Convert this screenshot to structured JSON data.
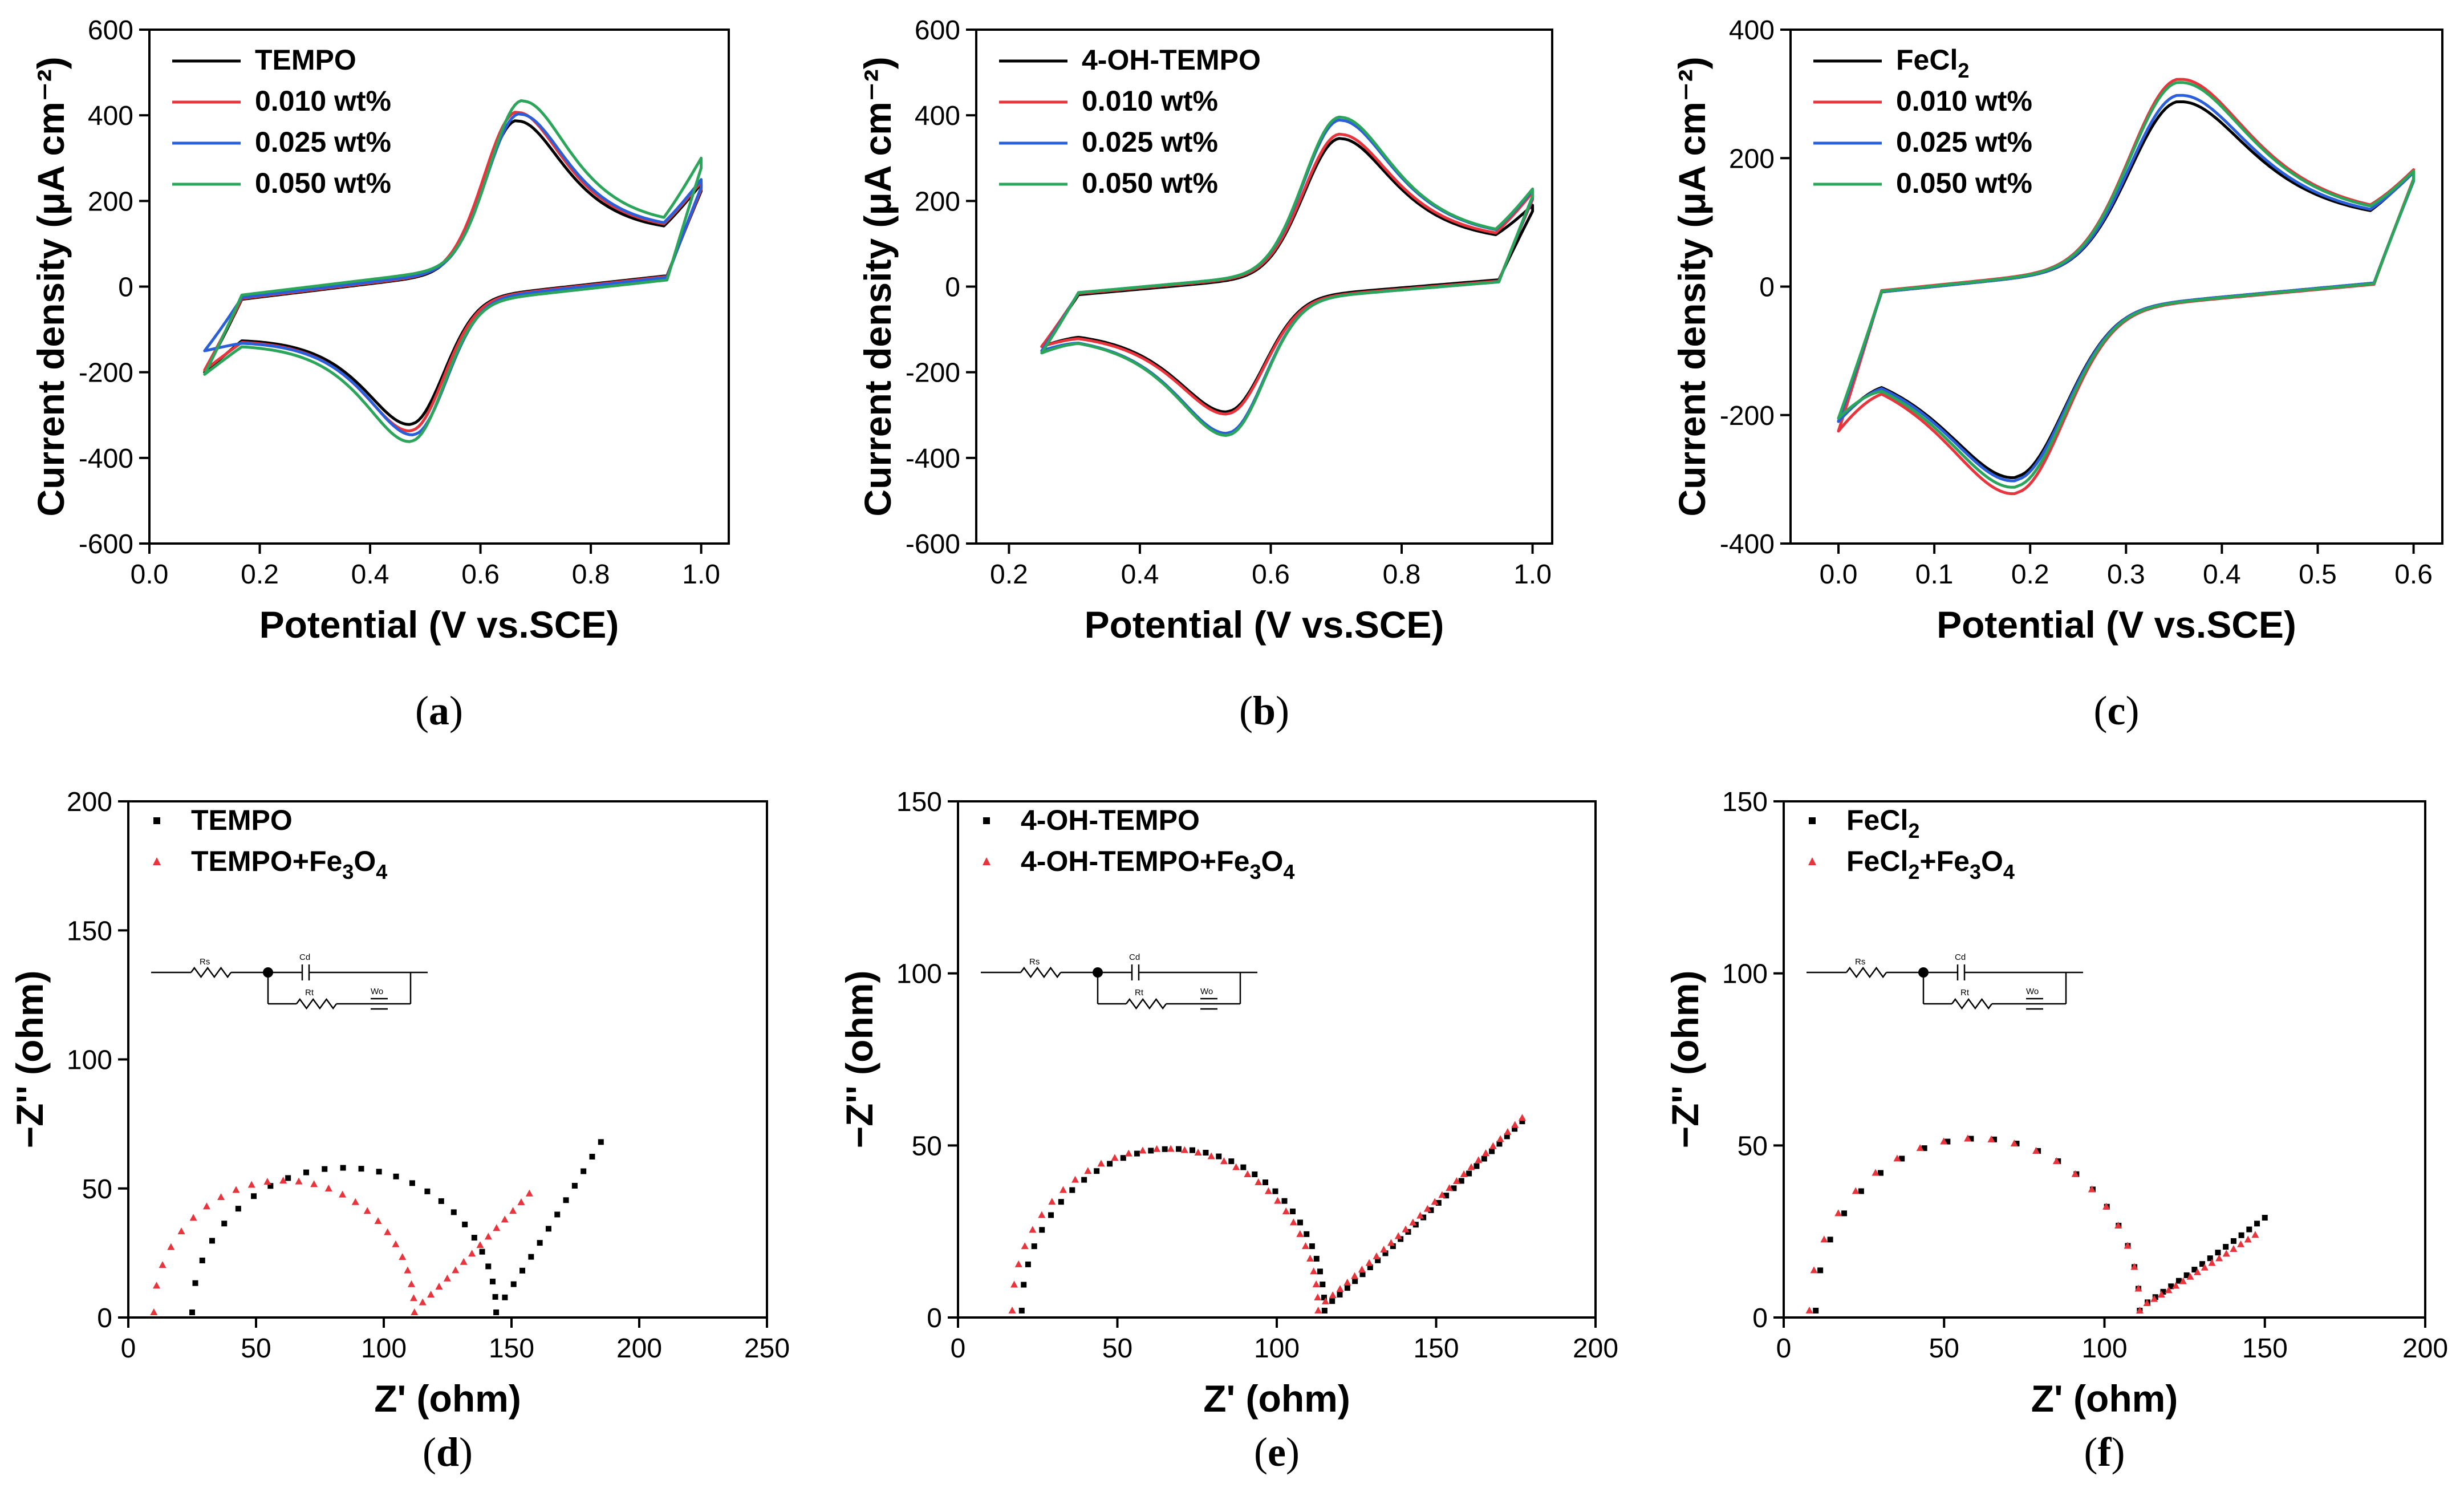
{
  "chart_data": [
    {
      "type": "line",
      "panel": "(a)",
      "panel_letter": "a",
      "xlabel": "Potential (V vs.SCE)",
      "ylabel": "Current density (μA cm⁻²)",
      "xlim": [
        0.0,
        1.05
      ],
      "ylim": [
        -600,
        600
      ],
      "xticks": [
        "0.0",
        "0.2",
        "0.4",
        "0.6",
        "0.8",
        "1.0"
      ],
      "yticks": [
        "-600",
        "-400",
        "-200",
        "0",
        "200",
        "400",
        "600"
      ],
      "legend_position": "top-left",
      "series": [
        {
          "name": "TEMPO",
          "color": "#000000",
          "cv": {
            "x0": 0.1,
            "x1": 1.0,
            "E": 0.57,
            "ipa": 370,
            "ipc": -310,
            "sep": 0.19,
            "w": 0.075,
            "cap": 30,
            "mid": 0,
            "slope": 260,
            "i0": -200,
            "iv": 240
          }
        },
        {
          "name": "0.010 wt%",
          "color": "#e8343c",
          "cv": {
            "x0": 0.1,
            "x1": 1.0,
            "E": 0.57,
            "ipa": 390,
            "ipc": -325,
            "sep": 0.19,
            "w": 0.075,
            "cap": 32,
            "mid": 0,
            "slope": 260,
            "i0": -195,
            "iv": 245
          }
        },
        {
          "name": "0.025 wt%",
          "color": "#2b5fd9",
          "cv": {
            "x0": 0.1,
            "x1": 1.0,
            "E": 0.575,
            "ipa": 385,
            "ipc": -335,
            "sep": 0.19,
            "w": 0.075,
            "cap": 34,
            "mid": 0,
            "slope": 260,
            "i0": -150,
            "iv": 250
          }
        },
        {
          "name": "0.050 wt%",
          "color": "#2aa55a",
          "cv": {
            "x0": 0.1,
            "x1": 1.0,
            "E": 0.575,
            "ipa": 415,
            "ipc": -350,
            "sep": 0.2,
            "w": 0.075,
            "cap": 40,
            "mid": 0,
            "slope": 260,
            "i0": -205,
            "iv": 300
          }
        }
      ]
    },
    {
      "type": "line",
      "panel": "(b)",
      "panel_letter": "b",
      "xlabel": "Potential (V vs.SCE)",
      "ylabel": "Current density (μA cm⁻²)",
      "xlim": [
        0.15,
        1.03
      ],
      "ylim": [
        -600,
        600
      ],
      "xticks": [
        "0.2",
        "0.4",
        "0.6",
        "0.8",
        "1.0"
      ],
      "yticks": [
        "-600",
        "-400",
        "-200",
        "0",
        "200",
        "400",
        "600"
      ],
      "legend_position": "top-left",
      "series": [
        {
          "name": "4-OH-TEMPO",
          "color": "#000000",
          "cv": {
            "x0": 0.25,
            "x1": 1.0,
            "E": 0.62,
            "ipa": 335,
            "ipc": -280,
            "sep": 0.17,
            "w": 0.07,
            "cap": 25,
            "mid": 0,
            "slope": 230,
            "i0": -140,
            "iv": 190
          }
        },
        {
          "name": "0.010 wt%",
          "color": "#e8343c",
          "cv": {
            "x0": 0.25,
            "x1": 1.0,
            "E": 0.62,
            "ipa": 345,
            "ipc": -285,
            "sep": 0.17,
            "w": 0.07,
            "cap": 28,
            "mid": 0,
            "slope": 230,
            "i0": -140,
            "iv": 220
          }
        },
        {
          "name": "0.025 wt%",
          "color": "#2b5fd9",
          "cv": {
            "x0": 0.25,
            "x1": 1.0,
            "E": 0.62,
            "ipa": 378,
            "ipc": -330,
            "sep": 0.17,
            "w": 0.07,
            "cap": 30,
            "mid": 0,
            "slope": 230,
            "i0": -150,
            "iv": 225
          }
        },
        {
          "name": "0.050 wt%",
          "color": "#2aa55a",
          "cv": {
            "x0": 0.25,
            "x1": 1.0,
            "E": 0.62,
            "ipa": 385,
            "ipc": -335,
            "sep": 0.17,
            "w": 0.07,
            "cap": 30,
            "mid": 0,
            "slope": 230,
            "i0": -155,
            "iv": 228
          }
        }
      ]
    },
    {
      "type": "line",
      "panel": "(c)",
      "panel_letter": "c",
      "xlabel": "Potential (V vs.SCE)",
      "ylabel": "Current density (μA cm⁻²)",
      "xlim": [
        -0.05,
        0.63
      ],
      "ylim": [
        -400,
        400
      ],
      "xticks": [
        "0.0",
        "0.1",
        "0.2",
        "0.3",
        "0.4",
        "0.5",
        "0.6"
      ],
      "yticks": [
        "-400",
        "-200",
        "0",
        "200",
        "400"
      ],
      "legend_position": "top-left",
      "series": [
        {
          "name": "FeCl",
          "name_sub": "2",
          "name_tail": "",
          "color": "#000000",
          "cv": {
            "x0": 0.0,
            "x1": 0.6,
            "E": 0.27,
            "ipa": 280,
            "ipc": -280,
            "sep": 0.17,
            "w": 0.065,
            "cap": 30,
            "mid": 0,
            "slope": 250,
            "i0": -210,
            "iv": 180
          }
        },
        {
          "name": "0.010 wt%",
          "color": "#e8343c",
          "cv": {
            "x0": 0.0,
            "x1": 0.6,
            "E": 0.27,
            "ipa": 315,
            "ipc": -305,
            "sep": 0.17,
            "w": 0.065,
            "cap": 32,
            "mid": 0,
            "slope": 250,
            "i0": -225,
            "iv": 182
          }
        },
        {
          "name": "0.025 wt%",
          "color": "#2b5fd9",
          "cv": {
            "x0": 0.0,
            "x1": 0.6,
            "E": 0.27,
            "ipa": 290,
            "ipc": -285,
            "sep": 0.17,
            "w": 0.065,
            "cap": 30,
            "mid": 0,
            "slope": 250,
            "i0": -210,
            "iv": 178
          }
        },
        {
          "name": "0.050 wt%",
          "color": "#2aa55a",
          "cv": {
            "x0": 0.0,
            "x1": 0.6,
            "E": 0.27,
            "ipa": 310,
            "ipc": -295,
            "sep": 0.17,
            "w": 0.065,
            "cap": 31,
            "mid": 0,
            "slope": 250,
            "i0": -205,
            "iv": 180
          }
        }
      ]
    },
    {
      "type": "scatter",
      "panel": "(d)",
      "panel_letter": "d",
      "xlabel": "Z' (ohm)",
      "ylabel": "−Z'' (ohm)",
      "xlim": [
        0,
        250
      ],
      "ylim": [
        0,
        200
      ],
      "xticks": [
        "0",
        "50",
        "100",
        "150",
        "200",
        "250"
      ],
      "yticks": [
        "0",
        "50",
        "100",
        "150",
        "200"
      ],
      "legend_position": "top-left",
      "circuit": {
        "rs": "Rs",
        "cd": "Cd",
        "rt": "Rt",
        "wo": "Wo"
      },
      "series": [
        {
          "name": "TEMPO",
          "color": "#000000",
          "marker": "square",
          "nyquist": {
            "r0": 25,
            "r1": 144,
            "peak": 56,
            "tail_end": 185,
            "tail_top": 68,
            "n": 26,
            "nt": 12
          }
        },
        {
          "name": "TEMPO+Fe",
          "name_sub": "3",
          "name_mid": "O",
          "name_sub2": "4",
          "color": "#e8343c",
          "marker": "triangle",
          "nyquist": {
            "r0": 10,
            "r1": 112,
            "peak": 51,
            "tail_end": 157,
            "tail_top": 48,
            "n": 26,
            "nt": 14
          }
        }
      ]
    },
    {
      "type": "scatter",
      "panel": "(e)",
      "panel_letter": "e",
      "xlabel": "Z' (ohm)",
      "ylabel": "−Z'' (ohm)",
      "xlim": [
        0,
        200
      ],
      "ylim": [
        0,
        150
      ],
      "xticks": [
        "0",
        "50",
        "100",
        "150",
        "200"
      ],
      "yticks": [
        "0",
        "50",
        "100",
        "150"
      ],
      "legend_position": "top-left",
      "circuit": {
        "rs": "Rs",
        "cd": "Cd",
        "rt": "Rt",
        "wo": "Wo"
      },
      "series": [
        {
          "name": "4-OH-TEMPO",
          "color": "#000000",
          "marker": "square",
          "nyquist": {
            "r0": 20,
            "r1": 115,
            "peak": 47,
            "tail_end": 177,
            "tail_top": 57,
            "n": 34,
            "nt": 26
          }
        },
        {
          "name": "4-OH-TEMPO+Fe",
          "name_sub": "3",
          "name_mid": "O",
          "name_sub2": "4",
          "color": "#e8343c",
          "marker": "triangle",
          "nyquist": {
            "r0": 17,
            "r1": 113,
            "peak": 47,
            "tail_end": 177,
            "tail_top": 58,
            "n": 34,
            "nt": 28
          }
        }
      ]
    },
    {
      "type": "scatter",
      "panel": "(f)",
      "panel_letter": "f",
      "xlabel": "Z' (ohm)",
      "ylabel": "−Z'' (ohm)",
      "xlim": [
        0,
        200
      ],
      "ylim": [
        0,
        150
      ],
      "xticks": [
        "0",
        "50",
        "100",
        "150",
        "200"
      ],
      "yticks": [
        "0",
        "50",
        "100",
        "150"
      ],
      "legend_position": "top-left",
      "circuit": {
        "rs": "Rs",
        "cd": "Cd",
        "rt": "Rt",
        "wo": "Wo"
      },
      "series": [
        {
          "name": "FeCl",
          "name_sub": "2",
          "color": "#000000",
          "marker": "square",
          "nyquist": {
            "r0": 10,
            "r1": 111,
            "peak": 50,
            "tail_end": 150,
            "tail_top": 29,
            "n": 22,
            "nt": 16
          }
        },
        {
          "name": "FeCl",
          "name_sub": "2",
          "name_mid": "+Fe",
          "name_sub2": "3",
          "name_mid2": "O",
          "name_sub3": "4",
          "color": "#e8343c",
          "marker": "triangle",
          "nyquist": {
            "r0": 8,
            "r1": 111,
            "peak": 50,
            "tail_end": 147,
            "tail_top": 24,
            "n": 22,
            "nt": 16
          }
        }
      ]
    }
  ]
}
